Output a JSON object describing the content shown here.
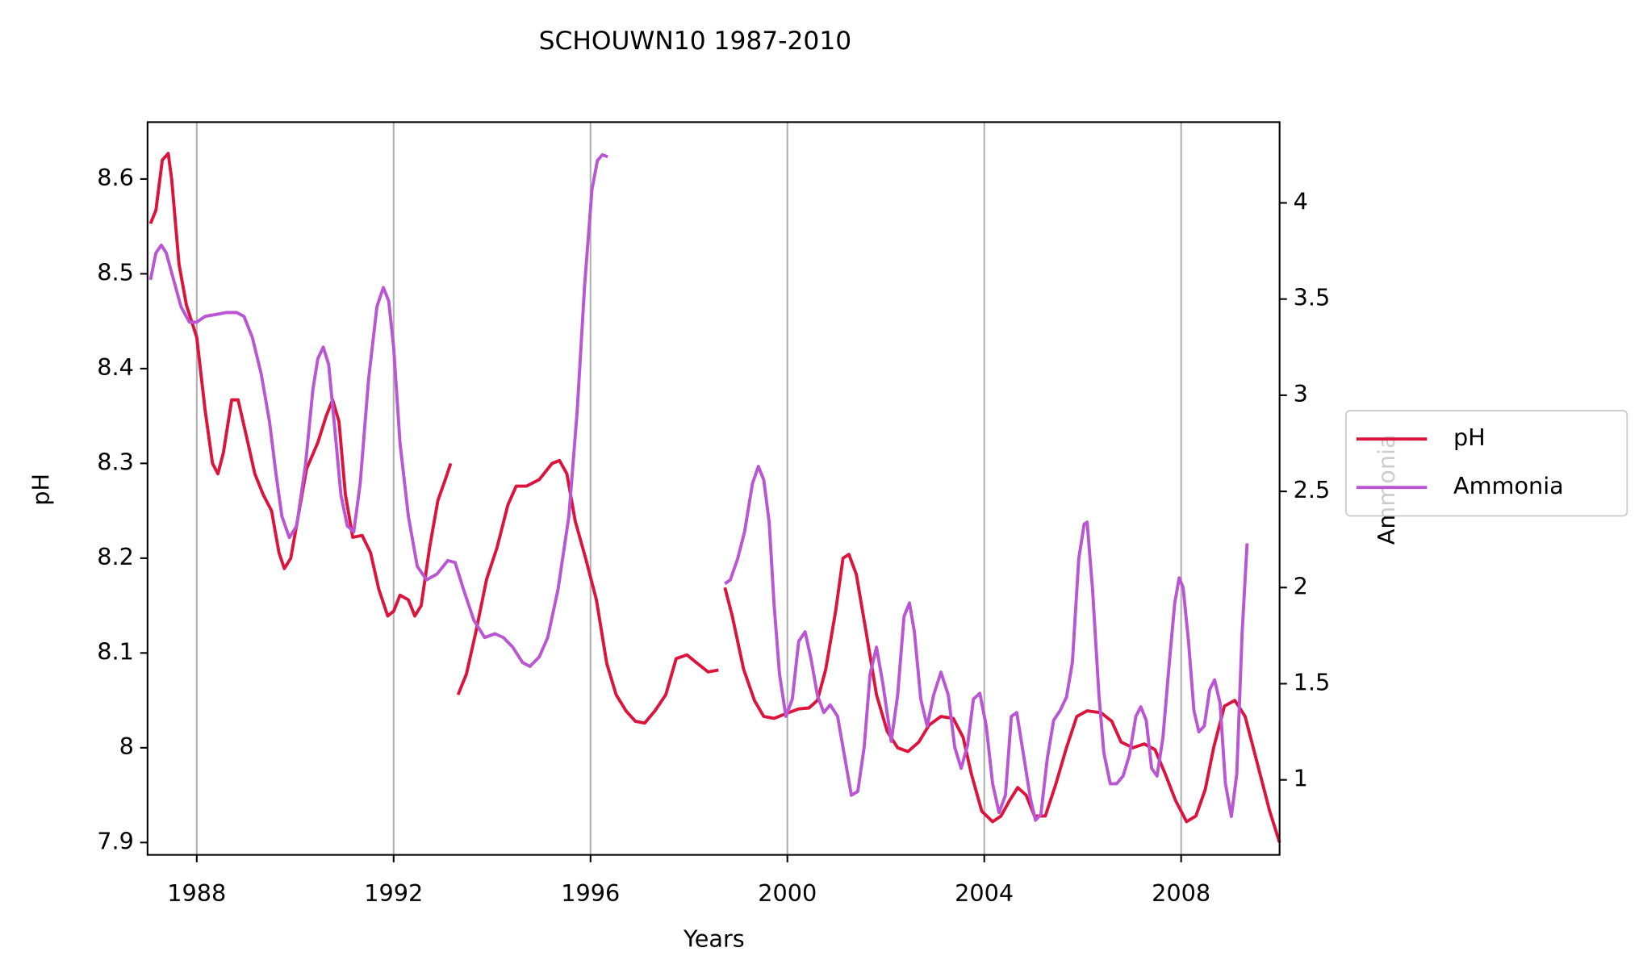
{
  "chart_data": {
    "type": "line",
    "title": "SCHOUWN10 1987-2010",
    "x_label": "Years",
    "y_label": "pH",
    "y2_label": "Ammonia",
    "xlim": [
      1987,
      2010
    ],
    "xticks": [
      1988,
      1992,
      1996,
      2000,
      2004,
      2008
    ],
    "ylim": [
      7.887,
      8.66
    ],
    "yticks": [
      7.9,
      8.0,
      8.1,
      8.2,
      8.3,
      8.4,
      8.5,
      8.6
    ],
    "y2lim": [
      0.61,
      4.42
    ],
    "y2ticks": [
      1.0,
      1.5,
      2.0,
      2.5,
      3.0,
      3.5,
      4.0
    ],
    "grid": "x",
    "legend": "right",
    "series": [
      {
        "name": "pH",
        "color": "#dc143c",
        "x": [
          1987.06,
          1987.17,
          1987.3,
          1987.42,
          1987.49,
          1987.64,
          1987.79,
          1988.0,
          1988.17,
          1988.32,
          1988.43,
          1988.54,
          1988.71,
          1988.84,
          1988.99,
          1989.18,
          1989.35,
          1989.52,
          1989.67,
          1989.78,
          1989.91,
          1990.06,
          1990.23,
          1990.46,
          1990.63,
          1990.76,
          1990.89,
          1991.02,
          1991.17,
          1991.36,
          1991.53,
          1991.7,
          1991.88,
          1992.0,
          1992.13,
          1992.3,
          1992.43,
          1992.56,
          1992.73,
          1992.9,
          1993.05,
          1993.16,
          1993.23,
          1993.31,
          1993.48,
          1993.67,
          1993.89,
          1994.1,
          1994.32,
          1994.49,
          1994.7,
          1994.96,
          1995.22,
          1995.37,
          1995.52,
          1995.69,
          1995.9,
          1996.12,
          1996.33,
          1996.52,
          1996.72,
          1996.91,
          1997.1,
          1997.31,
          1997.53,
          1997.74,
          1997.96,
          1998.17,
          1998.39,
          1998.6,
          1998.66,
          1998.73,
          1998.88,
          1999.11,
          1999.33,
          1999.52,
          1999.73,
          1999.97,
          2000.23,
          2000.44,
          2000.61,
          2000.78,
          2000.98,
          2001.13,
          2001.25,
          2001.4,
          2001.6,
          2001.81,
          2002.03,
          2002.24,
          2002.45,
          2002.67,
          2002.88,
          2003.12,
          2003.37,
          2003.57,
          2003.74,
          2003.95,
          2004.17,
          2004.34,
          2004.51,
          2004.68,
          2004.85,
          2005.02,
          2005.24,
          2005.45,
          2005.67,
          2005.88,
          2006.09,
          2006.37,
          2006.59,
          2006.78,
          2007.02,
          2007.25,
          2007.47,
          2007.68,
          2007.89,
          2008.11,
          2008.3,
          2008.49,
          2008.66,
          2008.88,
          2009.09,
          2009.3,
          2009.52,
          2009.8,
          2010.0
        ],
        "values": [
          8.553,
          8.567,
          8.62,
          8.627,
          8.6,
          8.51,
          8.467,
          8.433,
          8.356,
          8.3,
          8.289,
          8.311,
          8.367,
          8.367,
          8.333,
          8.289,
          8.267,
          8.25,
          8.206,
          8.189,
          8.2,
          8.244,
          8.294,
          8.322,
          8.35,
          8.367,
          8.344,
          8.267,
          8.222,
          8.224,
          8.206,
          8.167,
          8.139,
          8.144,
          8.161,
          8.156,
          8.139,
          8.15,
          8.211,
          8.261,
          8.283,
          8.3,
          null,
          8.056,
          8.078,
          8.122,
          8.178,
          8.211,
          8.256,
          8.276,
          8.276,
          8.283,
          8.3,
          8.303,
          8.289,
          8.239,
          8.2,
          8.156,
          8.089,
          8.056,
          8.039,
          8.028,
          8.026,
          8.039,
          8.056,
          8.094,
          8.098,
          8.089,
          8.08,
          8.082,
          null,
          8.169,
          8.139,
          8.083,
          8.05,
          8.033,
          8.031,
          8.036,
          8.041,
          8.042,
          8.05,
          8.083,
          8.144,
          8.2,
          8.204,
          8.183,
          8.122,
          8.056,
          8.017,
          8.0,
          7.996,
          8.006,
          8.024,
          8.033,
          8.031,
          8.011,
          7.972,
          7.933,
          7.922,
          7.928,
          7.944,
          7.958,
          7.95,
          7.928,
          7.928,
          7.961,
          8.0,
          8.033,
          8.039,
          8.037,
          8.028,
          8.006,
          8.0,
          8.004,
          7.998,
          7.972,
          7.944,
          7.922,
          7.928,
          7.956,
          8.0,
          8.044,
          8.05,
          8.033,
          7.989,
          7.933,
          7.9
        ]
      },
      {
        "name": "Ammonia",
        "color": "#ba55d3",
        "axis": "y2",
        "x": [
          1987.06,
          1987.17,
          1987.28,
          1987.38,
          1987.53,
          1987.68,
          1987.85,
          1988.0,
          1988.17,
          1988.39,
          1988.6,
          1988.81,
          1988.96,
          1989.13,
          1989.31,
          1989.48,
          1989.61,
          1989.73,
          1989.88,
          1990.03,
          1990.21,
          1990.36,
          1990.46,
          1990.57,
          1990.68,
          1990.81,
          1990.93,
          1991.06,
          1991.19,
          1991.32,
          1991.49,
          1991.66,
          1991.79,
          1991.9,
          1992.0,
          1992.13,
          1992.3,
          1992.48,
          1992.67,
          1992.88,
          1993.1,
          1993.25,
          1993.42,
          1993.63,
          1993.85,
          1994.06,
          1994.23,
          1994.42,
          1994.62,
          1994.77,
          1994.96,
          1995.13,
          1995.34,
          1995.56,
          1995.73,
          1995.88,
          1996.03,
          1996.14,
          1996.24,
          1996.35,
          1997.5,
          1998.73,
          1998.84,
          1998.99,
          1999.13,
          1999.29,
          1999.41,
          1999.52,
          1999.63,
          1999.73,
          1999.84,
          1999.97,
          2000.1,
          2000.23,
          2000.36,
          2000.48,
          2000.61,
          2000.74,
          2000.87,
          2001.02,
          2001.17,
          2001.3,
          2001.43,
          2001.56,
          2001.68,
          2001.81,
          2001.94,
          2002.11,
          2002.24,
          2002.37,
          2002.48,
          2002.58,
          2002.71,
          2002.84,
          2002.97,
          2003.12,
          2003.27,
          2003.4,
          2003.53,
          2003.66,
          2003.78,
          2003.91,
          2004.04,
          2004.17,
          2004.3,
          2004.43,
          2004.55,
          2004.66,
          2004.81,
          2004.94,
          2005.04,
          2005.15,
          2005.28,
          2005.41,
          2005.54,
          2005.67,
          2005.79,
          2005.92,
          2006.03,
          2006.09,
          2006.2,
          2006.33,
          2006.43,
          2006.56,
          2006.69,
          2006.82,
          2006.95,
          2007.08,
          2007.18,
          2007.29,
          2007.4,
          2007.51,
          2007.63,
          2007.76,
          2007.87,
          2007.96,
          2008.04,
          2008.15,
          2008.26,
          2008.36,
          2008.47,
          2008.58,
          2008.68,
          2008.79,
          2008.9,
          2009.02,
          2009.13,
          2009.24,
          2009.34
        ],
        "values": [
          3.6,
          3.74,
          3.78,
          3.74,
          3.6,
          3.46,
          3.38,
          3.38,
          3.41,
          3.42,
          3.43,
          3.43,
          3.41,
          3.3,
          3.11,
          2.86,
          2.59,
          2.37,
          2.26,
          2.32,
          2.64,
          3.03,
          3.19,
          3.25,
          3.16,
          2.81,
          2.48,
          2.32,
          2.29,
          2.54,
          3.08,
          3.46,
          3.56,
          3.49,
          3.25,
          2.75,
          2.37,
          2.11,
          2.04,
          2.07,
          2.14,
          2.13,
          1.99,
          1.83,
          1.74,
          1.76,
          1.74,
          1.69,
          1.61,
          1.59,
          1.64,
          1.74,
          1.99,
          2.37,
          2.92,
          3.57,
          4.07,
          4.22,
          4.25,
          4.24,
          null,
          2.02,
          2.04,
          2.15,
          2.29,
          2.54,
          2.63,
          2.56,
          2.34,
          1.91,
          1.55,
          1.33,
          1.42,
          1.72,
          1.77,
          1.63,
          1.44,
          1.35,
          1.39,
          1.33,
          1.11,
          0.92,
          0.94,
          1.17,
          1.55,
          1.69,
          1.5,
          1.2,
          1.44,
          1.85,
          1.92,
          1.77,
          1.42,
          1.28,
          1.44,
          1.56,
          1.44,
          1.17,
          1.06,
          1.18,
          1.42,
          1.45,
          1.28,
          0.98,
          0.83,
          0.92,
          1.33,
          1.35,
          1.11,
          0.9,
          0.79,
          0.82,
          1.11,
          1.31,
          1.36,
          1.43,
          1.61,
          2.15,
          2.33,
          2.34,
          1.99,
          1.44,
          1.14,
          0.98,
          0.98,
          1.02,
          1.13,
          1.33,
          1.38,
          1.31,
          1.06,
          1.02,
          1.22,
          1.61,
          1.92,
          2.05,
          2.0,
          1.72,
          1.36,
          1.25,
          1.28,
          1.47,
          1.52,
          1.4,
          0.98,
          0.81,
          1.03,
          1.77,
          2.23
        ]
      }
    ]
  }
}
